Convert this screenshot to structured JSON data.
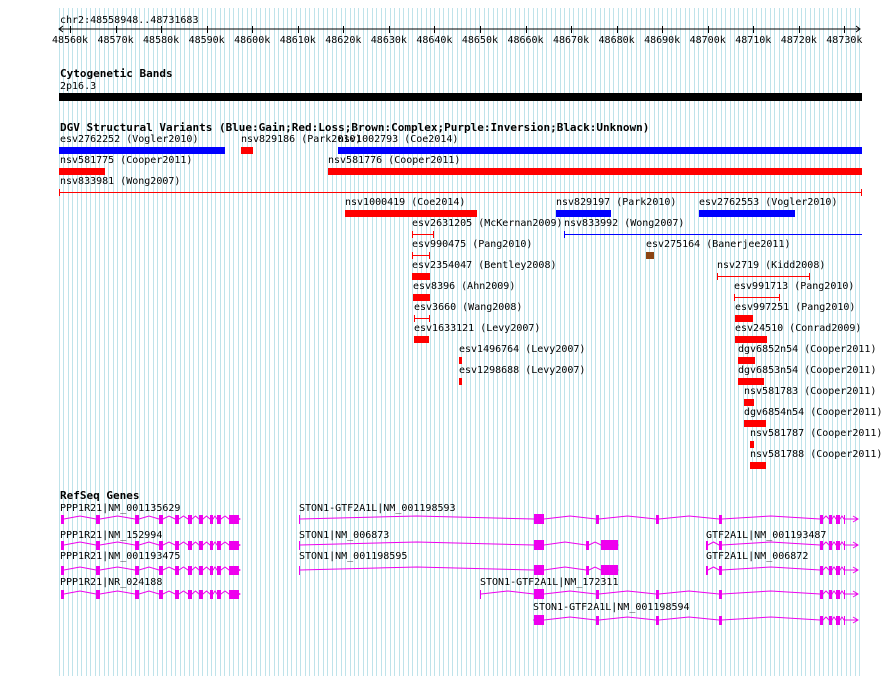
{
  "ruler": {
    "region": "chr2:48558948..48731683",
    "ticks": [
      "48560k",
      "48570k",
      "48580k",
      "48590k",
      "48600k",
      "48610k",
      "48620k",
      "48630k",
      "48640k",
      "48650k",
      "48660k",
      "48670k",
      "48680k",
      "48690k",
      "48700k",
      "48710k",
      "48720k",
      "48730k"
    ]
  },
  "cytobands": {
    "title": "Cytogenetic Bands",
    "band": "2p16.3"
  },
  "dgv": {
    "title": "DGV Structural Variants (Blue:Gain;Red:Loss;Brown:Complex;Purple:Inversion;Black:Unknown)",
    "colors": {
      "gain": "#0000ff",
      "loss": "#ff0000",
      "complex": "#8b4513",
      "inversion": "#800080",
      "unknown": "#000000"
    },
    "variants": [
      {
        "label": "esv2762252 (Vogler2010)",
        "type": "gain"
      },
      {
        "label": "nsv829186 (Park2010)",
        "type": "loss"
      },
      {
        "label": "nsv1002793 (Coe2014)",
        "type": "gain"
      },
      {
        "label": "nsv581775 (Cooper2011)",
        "type": "loss"
      },
      {
        "label": "nsv581776 (Cooper2011)",
        "type": "loss"
      },
      {
        "label": "nsv833981 (Wong2007)",
        "type": "loss"
      },
      {
        "label": "nsv1000419 (Coe2014)",
        "type": "loss"
      },
      {
        "label": "nsv829197 (Park2010)",
        "type": "gain"
      },
      {
        "label": "esv2762553 (Vogler2010)",
        "type": "gain"
      },
      {
        "label": "esv2631205 (McKernan2009)",
        "type": "loss"
      },
      {
        "label": "nsv833992 (Wong2007)",
        "type": "gain"
      },
      {
        "label": "esv990475 (Pang2010)",
        "type": "loss"
      },
      {
        "label": "esv275164 (Banerjee2011)",
        "type": "complex"
      },
      {
        "label": "esv2354047 (Bentley2008)",
        "type": "loss"
      },
      {
        "label": "nsv2719 (Kidd2008)",
        "type": "loss"
      },
      {
        "label": "esv8396 (Ahn2009)",
        "type": "loss"
      },
      {
        "label": "esv991713 (Pang2010)",
        "type": "loss"
      },
      {
        "label": "esv3660 (Wang2008)",
        "type": "loss"
      },
      {
        "label": "esv997251 (Pang2010)",
        "type": "loss"
      },
      {
        "label": "esv1633121 (Levy2007)",
        "type": "loss"
      },
      {
        "label": "esv24510 (Conrad2009)",
        "type": "loss"
      },
      {
        "label": "esv1496764 (Levy2007)",
        "type": "loss"
      },
      {
        "label": "dgv6852n54 (Cooper2011)",
        "type": "loss"
      },
      {
        "label": "esv1298688 (Levy2007)",
        "type": "loss"
      },
      {
        "label": "dgv6853n54 (Cooper2011)",
        "type": "loss"
      },
      {
        "label": "nsv581783 (Cooper2011)",
        "type": "loss"
      },
      {
        "label": "dgv6854n54 (Cooper2011)",
        "type": "loss"
      },
      {
        "label": "nsv581787 (Cooper2011)",
        "type": "loss"
      },
      {
        "label": "nsv581788 (Cooper2011)",
        "type": "loss"
      }
    ]
  },
  "refseq": {
    "title": "RefSeq Genes",
    "color": "#ee00ee",
    "genes": [
      {
        "label": "PPP1R21|NM_001135629"
      },
      {
        "label": "STON1-GTF2A1L|NM_001198593"
      },
      {
        "label": "PPP1R21|NM_152994"
      },
      {
        "label": "STON1|NM_006873"
      },
      {
        "label": "GTF2A1L|NM_001193487"
      },
      {
        "label": "PPP1R21|NM_001193475"
      },
      {
        "label": "STON1|NM_001198595"
      },
      {
        "label": "GTF2A1L|NM_006872"
      },
      {
        "label": "PPP1R21|NR_024188"
      },
      {
        "label": "STON1-GTF2A1L|NM_172311"
      },
      {
        "label": "STON1-GTF2A1L|NM_001198594"
      }
    ]
  }
}
